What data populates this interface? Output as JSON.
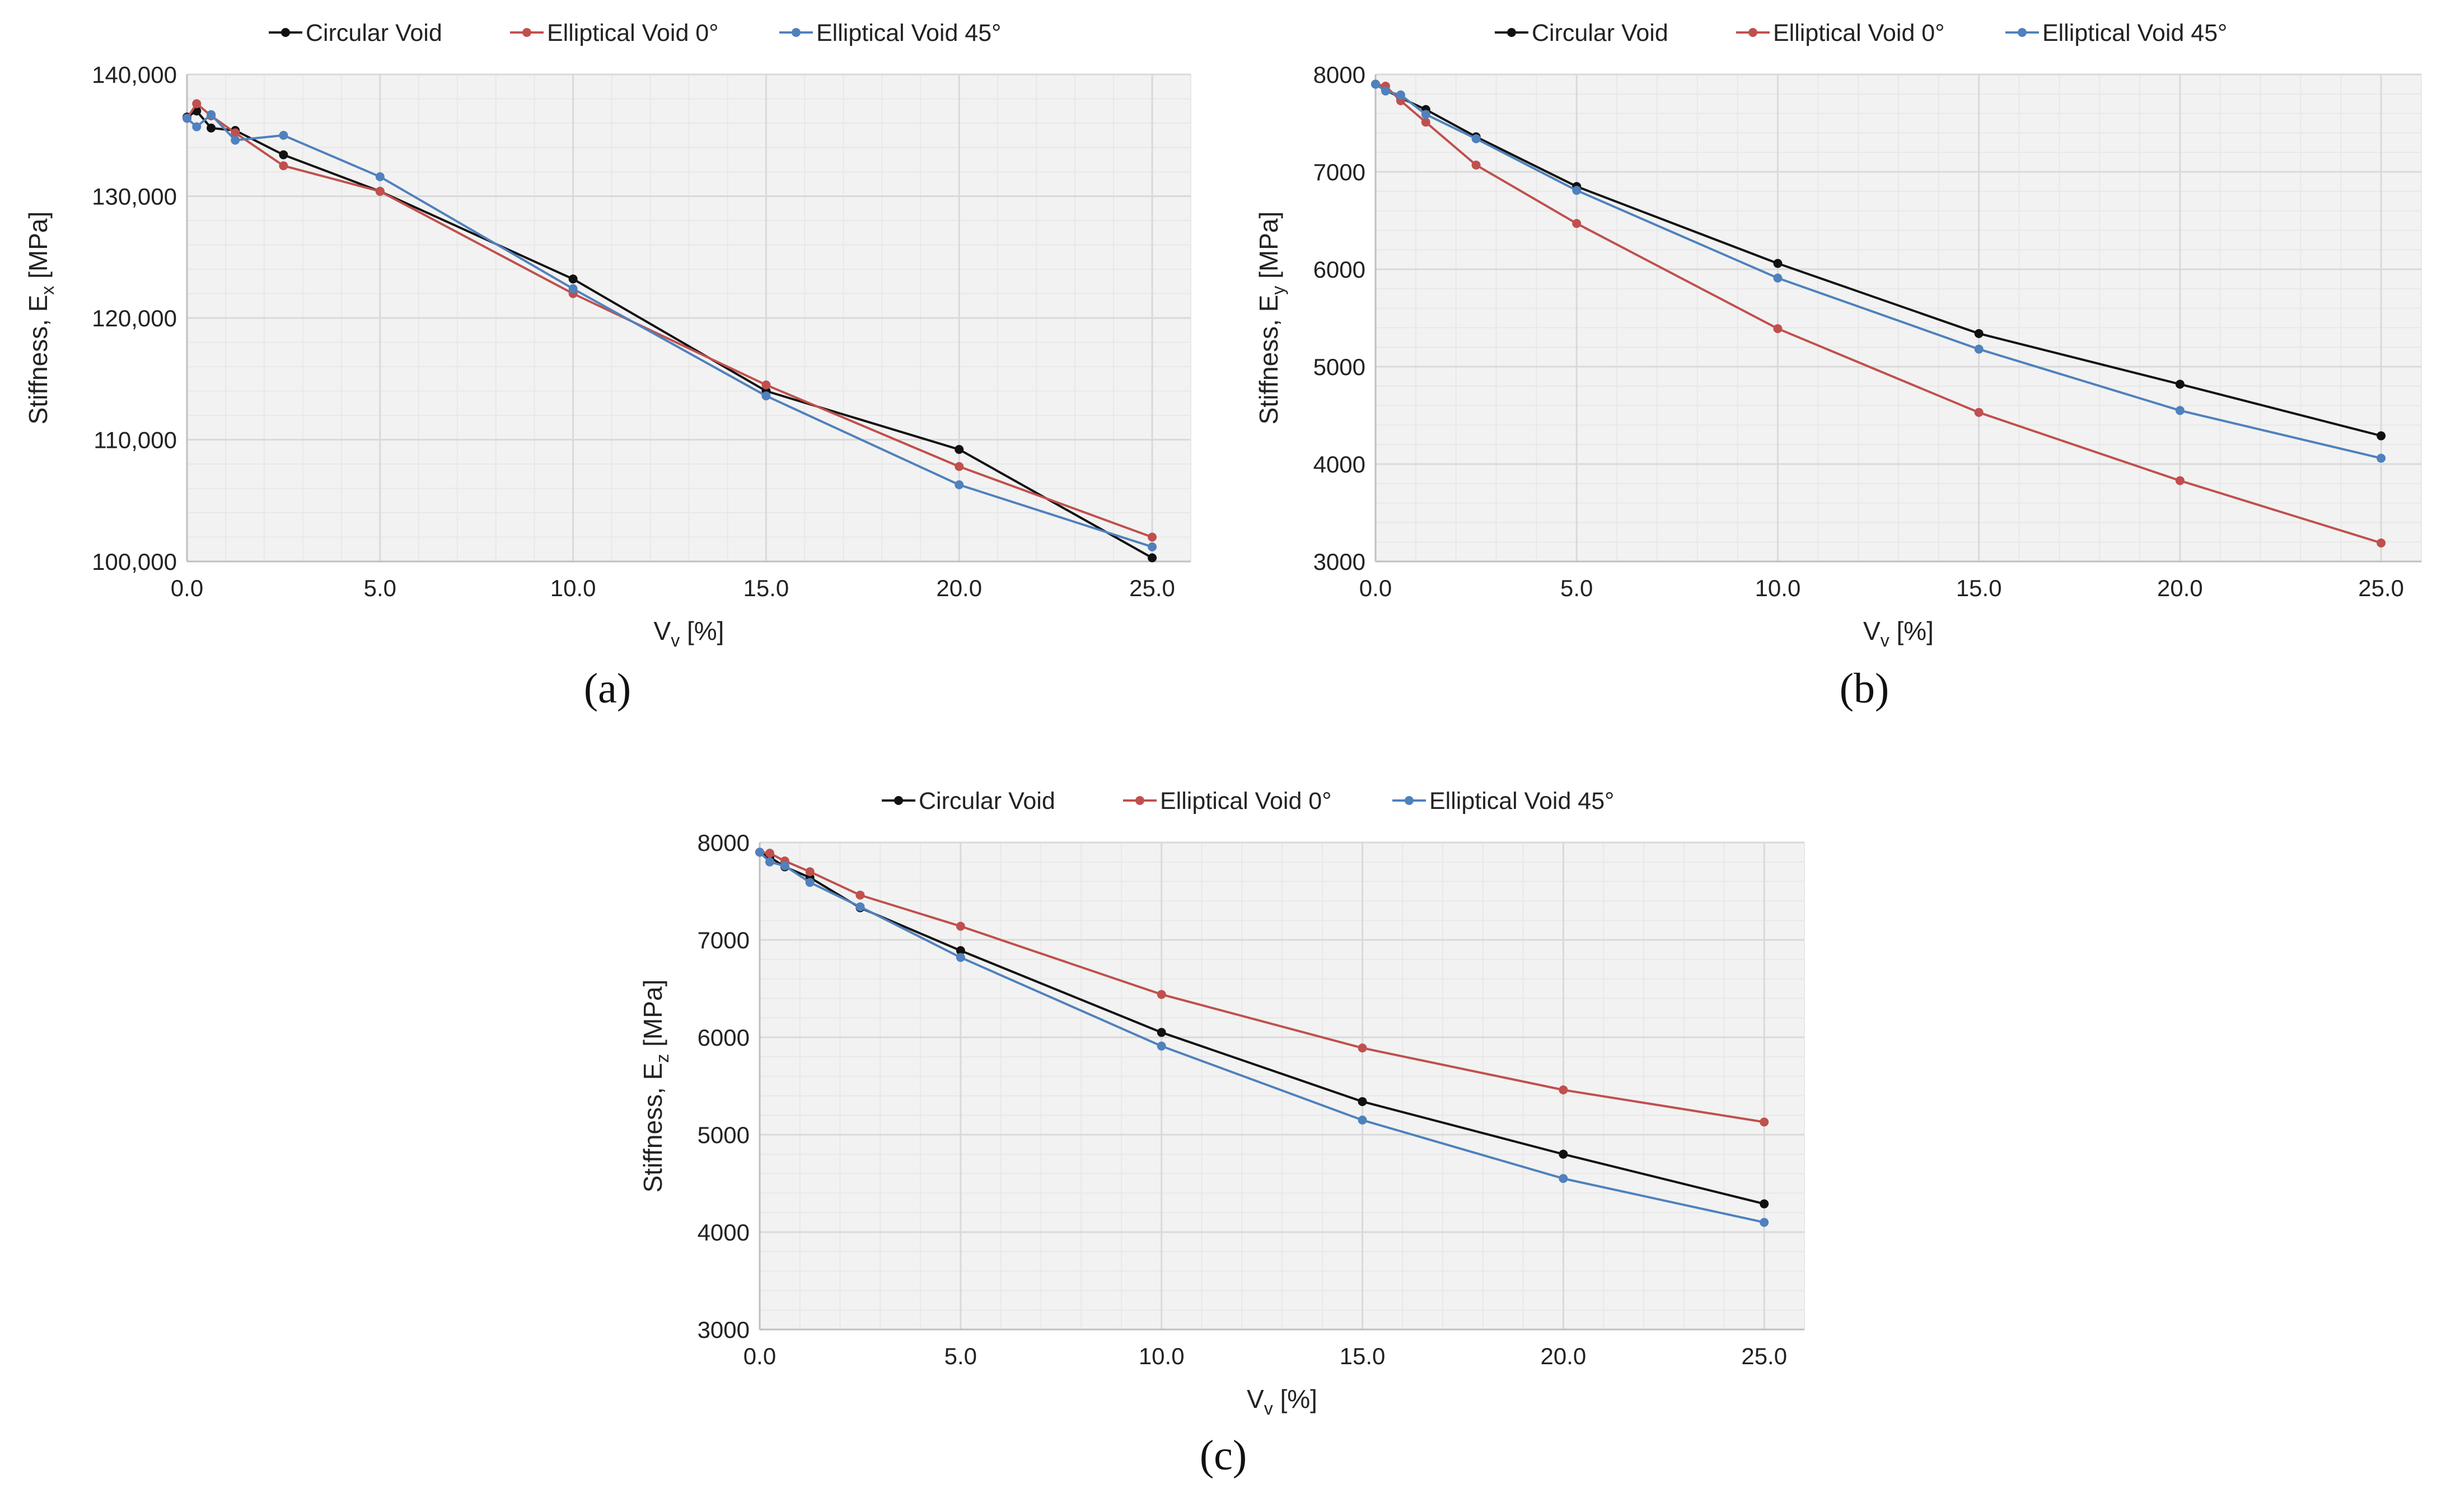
{
  "colors": {
    "circular": "#111111",
    "elliptical_0": "#c0504d",
    "elliptical_45": "#4f81bd",
    "plot_bg": "#f2f2f2",
    "grid_major": "#d9d9d9",
    "grid_minor": "#e8e8e8"
  },
  "chart_data": [
    {
      "id": "a",
      "type": "line",
      "caption": "(a)",
      "xlabel_main": "V",
      "xlabel_sub": "v",
      "xlabel_tail": " [%]",
      "ylabel_main": "Stiffness, E",
      "ylabel_sub": "x",
      "ylabel_tail": " [MPa]",
      "xlim": [
        0,
        26
      ],
      "ylim": [
        100000,
        140000
      ],
      "xticks": [
        0,
        5,
        10,
        15,
        20,
        25
      ],
      "xtick_labels": [
        "0.0",
        "5.0",
        "10.0",
        "15.0",
        "20.0",
        "25.0"
      ],
      "yticks": [
        100000,
        110000,
        120000,
        130000,
        140000
      ],
      "ytick_labels": [
        "100,000",
        "110,000",
        "120,000",
        "130,000",
        "140,000"
      ],
      "series": [
        {
          "name": "Circular Void",
          "color_key": "circular",
          "x": [
            0,
            0.25,
            0.625,
            1.25,
            2.5,
            5,
            10,
            15,
            20,
            25
          ],
          "y": [
            136500,
            137000,
            135600,
            135400,
            133400,
            130400,
            123200,
            114000,
            109200,
            100300
          ]
        },
        {
          "name": "Elliptical Void 0°",
          "color_key": "elliptical_0",
          "x": [
            0,
            0.25,
            0.625,
            1.25,
            2.5,
            5,
            10,
            15,
            20,
            25
          ],
          "y": [
            136400,
            137600,
            136600,
            135200,
            132500,
            130400,
            122000,
            114500,
            107800,
            102000
          ]
        },
        {
          "name": "Elliptical Void 45°",
          "color_key": "elliptical_45",
          "x": [
            0,
            0.25,
            0.625,
            1.25,
            2.5,
            5,
            10,
            15,
            20,
            25
          ],
          "y": [
            136400,
            135700,
            136700,
            134600,
            135000,
            131600,
            122400,
            113600,
            106300,
            101200
          ]
        }
      ]
    },
    {
      "id": "b",
      "type": "line",
      "caption": "(b)",
      "xlabel_main": "V",
      "xlabel_sub": "v",
      "xlabel_tail": " [%]",
      "ylabel_main": "Stiffness, E",
      "ylabel_sub": "y",
      "ylabel_tail": " [MPa]",
      "xlim": [
        0,
        26
      ],
      "ylim": [
        3000,
        8000
      ],
      "xticks": [
        0,
        5,
        10,
        15,
        20,
        25
      ],
      "xtick_labels": [
        "0.0",
        "5.0",
        "10.0",
        "15.0",
        "20.0",
        "25.0"
      ],
      "yticks": [
        3000,
        4000,
        5000,
        6000,
        7000,
        8000
      ],
      "ytick_labels": [
        "3000",
        "4000",
        "5000",
        "6000",
        "7000",
        "8000"
      ],
      "series": [
        {
          "name": "Circular Void",
          "color_key": "circular",
          "x": [
            0,
            0.25,
            0.625,
            1.25,
            2.5,
            5,
            10,
            15,
            20,
            25
          ],
          "y": [
            7900,
            7840,
            7760,
            7640,
            7360,
            6850,
            6060,
            5340,
            4820,
            4290
          ]
        },
        {
          "name": "Elliptical Void 0°",
          "color_key": "elliptical_0",
          "x": [
            0,
            0.25,
            0.625,
            1.25,
            2.5,
            5,
            10,
            15,
            20,
            25
          ],
          "y": [
            7900,
            7880,
            7730,
            7510,
            7070,
            6470,
            5390,
            4530,
            3830,
            3190
          ]
        },
        {
          "name": "Elliptical Void 45°",
          "color_key": "elliptical_45",
          "x": [
            0,
            0.25,
            0.625,
            1.25,
            2.5,
            5,
            10,
            15,
            20,
            25
          ],
          "y": [
            7900,
            7830,
            7790,
            7590,
            7340,
            6810,
            5910,
            5180,
            4550,
            4060
          ]
        }
      ]
    },
    {
      "id": "c",
      "type": "line",
      "caption": "(c)",
      "xlabel_main": "V",
      "xlabel_sub": "v",
      "xlabel_tail": " [%]",
      "ylabel_main": "Stiffness, E",
      "ylabel_sub": "z",
      "ylabel_tail": " [MPa]",
      "xlim": [
        0,
        26
      ],
      "ylim": [
        3000,
        8000
      ],
      "xticks": [
        0,
        5,
        10,
        15,
        20,
        25
      ],
      "xtick_labels": [
        "0.0",
        "5.0",
        "10.0",
        "15.0",
        "20.0",
        "25.0"
      ],
      "yticks": [
        3000,
        4000,
        5000,
        6000,
        7000,
        8000
      ],
      "ytick_labels": [
        "3000",
        "4000",
        "5000",
        "6000",
        "7000",
        "8000"
      ],
      "series": [
        {
          "name": "Circular Void",
          "color_key": "circular",
          "x": [
            0,
            0.25,
            0.625,
            1.25,
            2.5,
            5,
            10,
            15,
            20,
            25
          ],
          "y": [
            7900,
            7850,
            7750,
            7640,
            7330,
            6890,
            6050,
            5340,
            4800,
            4290
          ]
        },
        {
          "name": "Elliptical Void 0°",
          "color_key": "elliptical_0",
          "x": [
            0,
            0.25,
            0.625,
            1.25,
            2.5,
            5,
            10,
            15,
            20,
            25
          ],
          "y": [
            7900,
            7890,
            7810,
            7700,
            7460,
            7140,
            6440,
            5890,
            5460,
            5130
          ]
        },
        {
          "name": "Elliptical Void 45°",
          "color_key": "elliptical_45",
          "x": [
            0,
            0.25,
            0.625,
            1.25,
            2.5,
            5,
            10,
            15,
            20,
            25
          ],
          "y": [
            7900,
            7800,
            7760,
            7590,
            7340,
            6820,
            5910,
            5150,
            4550,
            4100
          ]
        }
      ]
    }
  ]
}
